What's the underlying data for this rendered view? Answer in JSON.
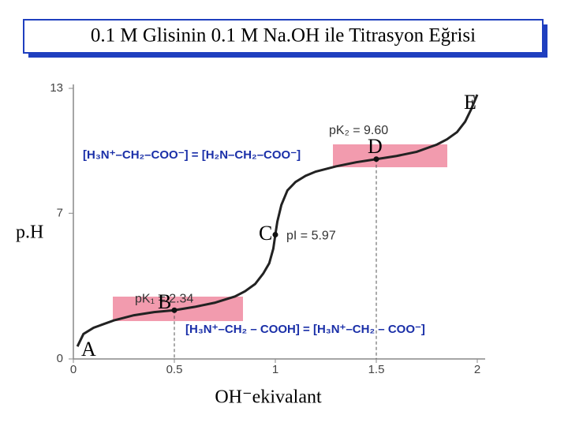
{
  "chart_data": {
    "type": "line",
    "title": "0.1 M Glisinin 0.1 M Na.OH ile Titrasyon Eğrisi",
    "x_label": "OH⁻ekivalant",
    "y_label": "p.H",
    "x": [
      0.02,
      0.05,
      0.1,
      0.2,
      0.3,
      0.4,
      0.5,
      0.6,
      0.7,
      0.8,
      0.85,
      0.9,
      0.94,
      0.97,
      0.99,
      1.0,
      1.01,
      1.03,
      1.06,
      1.1,
      1.15,
      1.2,
      1.3,
      1.4,
      1.5,
      1.6,
      1.7,
      1.8,
      1.85,
      1.9,
      1.94,
      1.97,
      2.0
    ],
    "series": [
      {
        "color": "#222222",
        "values": [
          0.6,
          1.2,
          1.5,
          1.85,
          2.1,
          2.25,
          2.34,
          2.5,
          2.7,
          3.0,
          3.25,
          3.6,
          4.1,
          4.6,
          5.3,
          5.97,
          6.6,
          7.4,
          8.1,
          8.5,
          8.8,
          9.0,
          9.25,
          9.45,
          9.6,
          9.75,
          9.95,
          10.3,
          10.55,
          10.9,
          11.4,
          12.0,
          12.7
        ]
      }
    ],
    "points": {
      "x": [
        0.5,
        1,
        1.5
      ],
      "values": [
        2.34,
        5.97,
        9.6
      ],
      "value_labels": [
        "pK₁ = 2.34",
        "pI = 5.97",
        "pK₂ = 9.60"
      ]
    },
    "letters": [
      "A",
      "B",
      "C",
      "D",
      "E"
    ],
    "formulas": [
      "[H₃N⁺–CH₂–COO⁻] = [H₂N–CH₂–COO⁻]",
      "[H₃N⁺–CH₂ – COOH] = [H₃N⁺–CH₂ – COO⁻]"
    ],
    "xlim": [
      0,
      2
    ],
    "ylim": [
      0,
      13
    ],
    "xticks": [
      0,
      0.5,
      1,
      1.5,
      2
    ],
    "yticks": [
      0,
      7,
      13
    ]
  }
}
